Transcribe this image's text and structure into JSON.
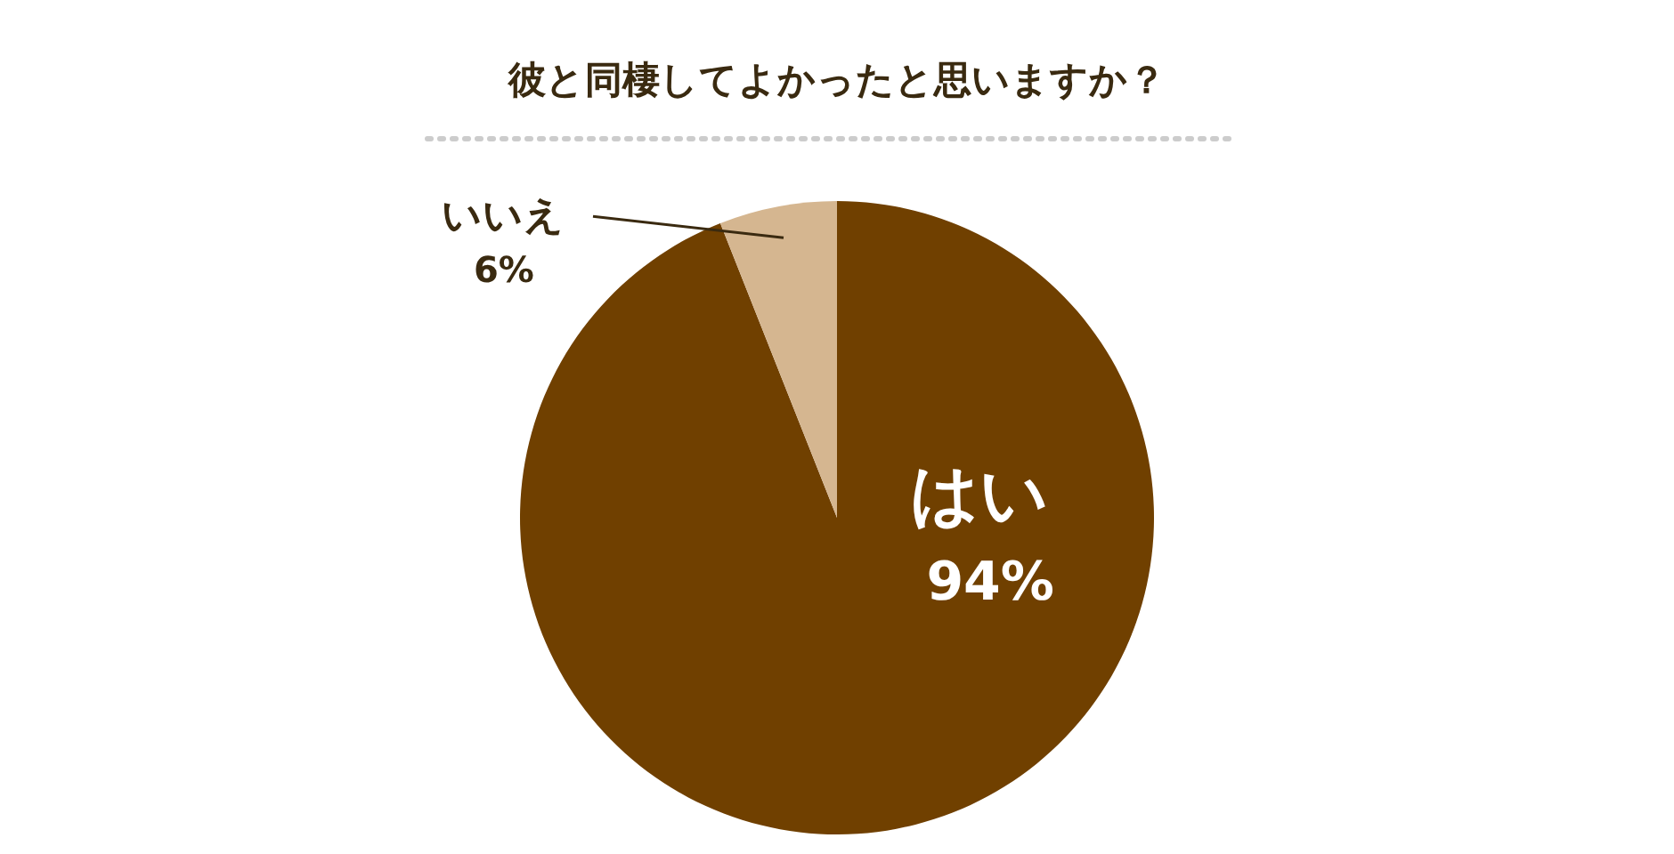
{
  "chart_data": {
    "type": "pie",
    "title": "彼と同棲してよかったと思いますか？",
    "categories": [
      "はい",
      "いいえ"
    ],
    "values": [
      94,
      6
    ],
    "colors": [
      "#704000",
      "#d5b690"
    ],
    "value_labels": [
      "94%",
      "6%"
    ]
  }
}
